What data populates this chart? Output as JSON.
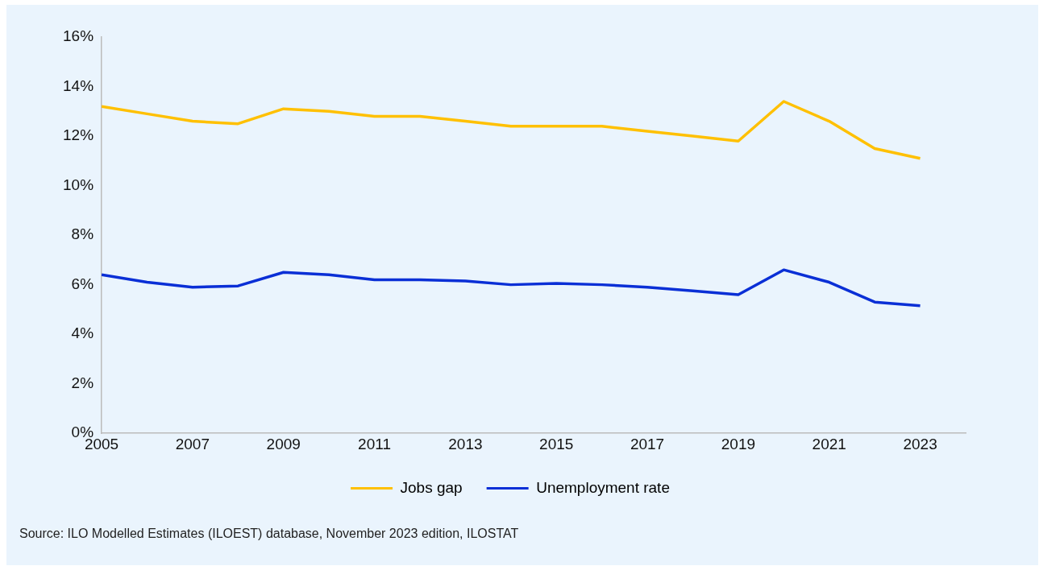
{
  "chart_data": {
    "type": "line",
    "x": [
      2005,
      2006,
      2007,
      2008,
      2009,
      2010,
      2011,
      2012,
      2013,
      2014,
      2015,
      2016,
      2017,
      2018,
      2019,
      2020,
      2021,
      2022,
      2023
    ],
    "series": [
      {
        "name": "Jobs gap",
        "color": "#ffc000",
        "values": [
          13.2,
          12.9,
          12.6,
          12.5,
          13.1,
          13.0,
          12.8,
          12.8,
          12.6,
          12.4,
          12.4,
          12.4,
          12.2,
          12.0,
          11.8,
          13.4,
          12.6,
          11.5,
          11.1
        ]
      },
      {
        "name": "Unemployment rate",
        "color": "#0a2fd6",
        "values": [
          6.4,
          6.1,
          5.9,
          5.95,
          6.5,
          6.4,
          6.2,
          6.2,
          6.15,
          6.0,
          6.05,
          6.0,
          5.9,
          5.75,
          5.6,
          6.6,
          6.1,
          5.3,
          5.15
        ]
      }
    ],
    "xlim": [
      2005,
      2024
    ],
    "xticks": [
      2005,
      2007,
      2009,
      2011,
      2013,
      2015,
      2017,
      2019,
      2021,
      2023
    ],
    "ylim": [
      0,
      16
    ],
    "yticks": [
      {
        "value": 0,
        "label": "0%"
      },
      {
        "value": 2,
        "label": "2%"
      },
      {
        "value": 4,
        "label": "4%"
      },
      {
        "value": 6,
        "label": "6%"
      },
      {
        "value": 8,
        "label": "8%"
      },
      {
        "value": 10,
        "label": "10%"
      },
      {
        "value": 12,
        "label": "12%"
      },
      {
        "value": 14,
        "label": "14%"
      },
      {
        "value": 16,
        "label": "16%"
      }
    ],
    "grid": false,
    "legend": "bottom",
    "marker": "none",
    "line_style": "solid",
    "annotations": [
      "Source: ILO Modelled Estimates (ILOEST) database, November 2023 edition, ILOSTAT"
    ]
  }
}
